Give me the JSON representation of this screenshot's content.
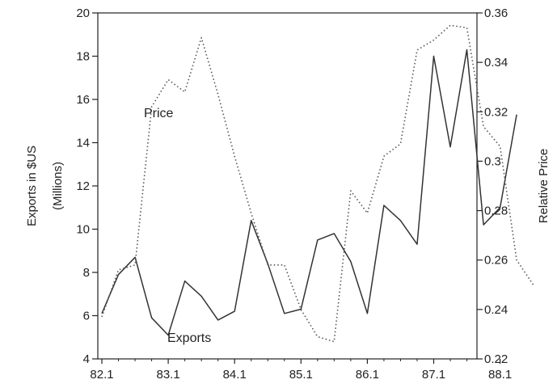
{
  "chart_data": {
    "type": "line",
    "x_tick_labels": [
      "82.1",
      "83.1",
      "84.1",
      "85.1",
      "86.1",
      "87.1",
      "88.1"
    ],
    "left_axis": {
      "label_line1": "Exports in $US",
      "label_line2": "(Millions)",
      "ylim": [
        4,
        20
      ],
      "ticks": [
        4,
        6,
        8,
        10,
        12,
        14,
        16,
        18,
        20
      ],
      "tick_labels": [
        "4",
        "6",
        "8",
        "10",
        "12",
        "14",
        "16",
        "18",
        "20"
      ]
    },
    "right_axis": {
      "label": "Relative Price",
      "ylim": [
        0.22,
        0.36
      ],
      "ticks": [
        0.22,
        0.24,
        0.26,
        0.28,
        0.3,
        0.32,
        0.34,
        0.36
      ],
      "tick_labels": [
        "0.22",
        "0.24",
        "0.26",
        "0.28",
        "0.3",
        "0.32",
        "0.34",
        "0.36"
      ]
    },
    "x_start": 1982.0,
    "x_step": 0.25,
    "series": [
      {
        "name": "Exports",
        "axis": "left",
        "style": "solid",
        "color": "#333333",
        "values": [
          6.1,
          7.9,
          8.7,
          5.9,
          5.1,
          7.6,
          6.9,
          5.8,
          6.2,
          10.4,
          8.4,
          6.1,
          6.3,
          9.5,
          9.8,
          8.5,
          6.1,
          11.1,
          10.4,
          9.3,
          18.0,
          13.8,
          18.3,
          10.2,
          11.0,
          15.3
        ]
      },
      {
        "name": "Price",
        "axis": "right",
        "style": "dotted",
        "color": "#555555",
        "values": [
          0.237,
          0.256,
          0.258,
          0.322,
          0.333,
          0.328,
          0.35,
          0.327,
          0.302,
          0.279,
          0.258,
          0.258,
          0.24,
          0.229,
          0.227,
          0.288,
          0.279,
          0.302,
          0.307,
          0.345,
          0.349,
          0.355,
          0.354,
          0.314,
          0.306,
          0.26,
          0.25
        ]
      }
    ],
    "annotations": [
      {
        "text": "Price",
        "series": "Price"
      },
      {
        "text": "Exports",
        "series": "Exports"
      }
    ],
    "grid": false
  }
}
